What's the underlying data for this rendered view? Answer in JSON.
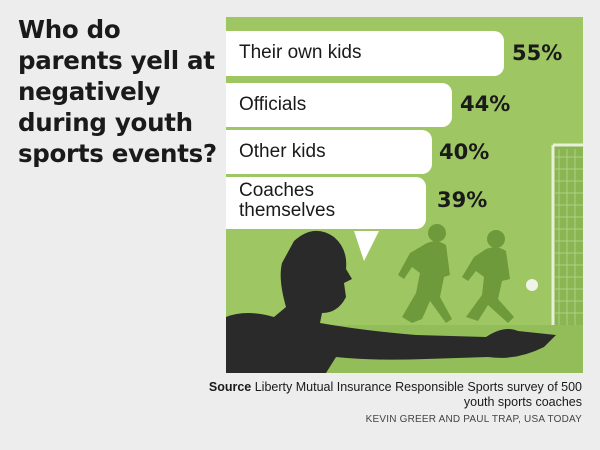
{
  "title": "Who do parents yell at negatively during youth sports events?",
  "source_label": "Source",
  "source_text": "Liberty Mutual Insurance Responsible Sports survey of 500 youth sports coaches",
  "credit": "KEVIN GREER AND PAUL TRAP, USA TODAY",
  "colors": {
    "panel_green": "#9ec763",
    "dark_silhouette": "#2a2a2a",
    "player_green": "#6f9a3b",
    "bubble": "#ffffff"
  },
  "chart_data": {
    "type": "bar",
    "title": "Who do parents yell at negatively during youth sports events?",
    "categories": [
      "Their own kids",
      "Officials",
      "Other kids",
      "Coaches themselves"
    ],
    "values": [
      55,
      44,
      40,
      39
    ],
    "value_labels": [
      "55%",
      "44%",
      "40%",
      "39%"
    ],
    "unit": "%"
  }
}
